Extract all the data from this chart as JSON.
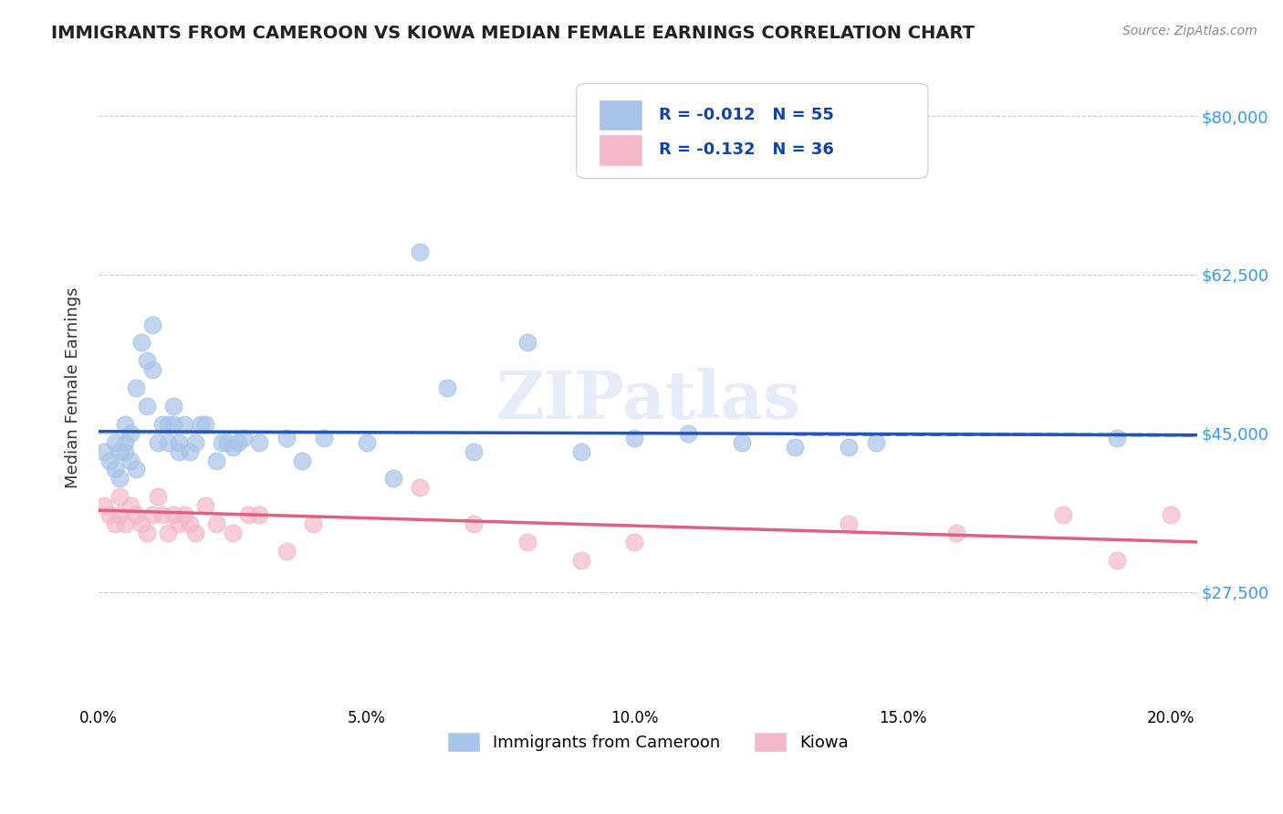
{
  "title": "IMMIGRANTS FROM CAMEROON VS KIOWA MEDIAN FEMALE EARNINGS CORRELATION CHART",
  "source": "Source: ZipAtlas.com",
  "ylabel": "Median Female Earnings",
  "xlabel_ticks": [
    "0.0%",
    "5.0%",
    "10.0%",
    "15.0%",
    "20.0%"
  ],
  "xlabel_vals": [
    0.0,
    0.05,
    0.1,
    0.15,
    0.2
  ],
  "ylabel_ticks": [
    "$27,500",
    "$45,000",
    "$62,500",
    "$80,000"
  ],
  "ylabel_vals": [
    27500,
    45000,
    62500,
    80000
  ],
  "ylim": [
    15000,
    85000
  ],
  "xlim": [
    0.0,
    0.205
  ],
  "blue_R": -0.012,
  "blue_N": 55,
  "pink_R": -0.132,
  "pink_N": 36,
  "legend1_label": "R = -0.012   N = 55",
  "legend2_label": "R = -0.132   N = 36",
  "legend_bottom_label1": "Immigrants from Cameroon",
  "legend_bottom_label2": "Kiowa",
  "watermark": "ZIPatlas",
  "blue_color": "#a8c4e8",
  "pink_color": "#f4b8c8",
  "blue_line_color": "#2255bb",
  "pink_line_color": "#e06080",
  "blue_x": [
    0.001,
    0.002,
    0.003,
    0.003,
    0.004,
    0.004,
    0.005,
    0.005,
    0.005,
    0.006,
    0.006,
    0.007,
    0.007,
    0.008,
    0.009,
    0.009,
    0.01,
    0.01,
    0.011,
    0.012,
    0.013,
    0.013,
    0.014,
    0.014,
    0.015,
    0.015,
    0.016,
    0.017,
    0.018,
    0.019,
    0.02,
    0.022,
    0.023,
    0.024,
    0.025,
    0.026,
    0.027,
    0.03,
    0.035,
    0.038,
    0.042,
    0.05,
    0.055,
    0.06,
    0.065,
    0.07,
    0.08,
    0.09,
    0.1,
    0.11,
    0.12,
    0.13,
    0.14,
    0.145,
    0.19
  ],
  "blue_y": [
    43000,
    42000,
    44000,
    41000,
    40000,
    43000,
    46000,
    44000,
    43000,
    45000,
    42000,
    41000,
    50000,
    55000,
    53000,
    48000,
    57000,
    52000,
    44000,
    46000,
    46000,
    44000,
    48000,
    46000,
    44000,
    43000,
    46000,
    43000,
    44000,
    46000,
    46000,
    42000,
    44000,
    44000,
    43500,
    44000,
    44500,
    44000,
    44500,
    42000,
    44500,
    44000,
    40000,
    65000,
    50000,
    43000,
    55000,
    43000,
    44500,
    45000,
    44000,
    43500,
    43500,
    44000,
    44500
  ],
  "pink_x": [
    0.001,
    0.002,
    0.003,
    0.004,
    0.004,
    0.005,
    0.006,
    0.007,
    0.008,
    0.009,
    0.01,
    0.011,
    0.012,
    0.013,
    0.014,
    0.015,
    0.016,
    0.017,
    0.018,
    0.02,
    0.022,
    0.025,
    0.028,
    0.03,
    0.035,
    0.04,
    0.06,
    0.07,
    0.08,
    0.09,
    0.1,
    0.14,
    0.16,
    0.18,
    0.19,
    0.2
  ],
  "pink_y": [
    37000,
    36000,
    35000,
    38000,
    36000,
    35000,
    37000,
    36000,
    35000,
    34000,
    36000,
    38000,
    36000,
    34000,
    36000,
    35000,
    36000,
    35000,
    34000,
    37000,
    35000,
    34000,
    36000,
    36000,
    32000,
    35000,
    39000,
    35000,
    33000,
    31000,
    33000,
    35000,
    34000,
    36000,
    31000,
    36000
  ]
}
